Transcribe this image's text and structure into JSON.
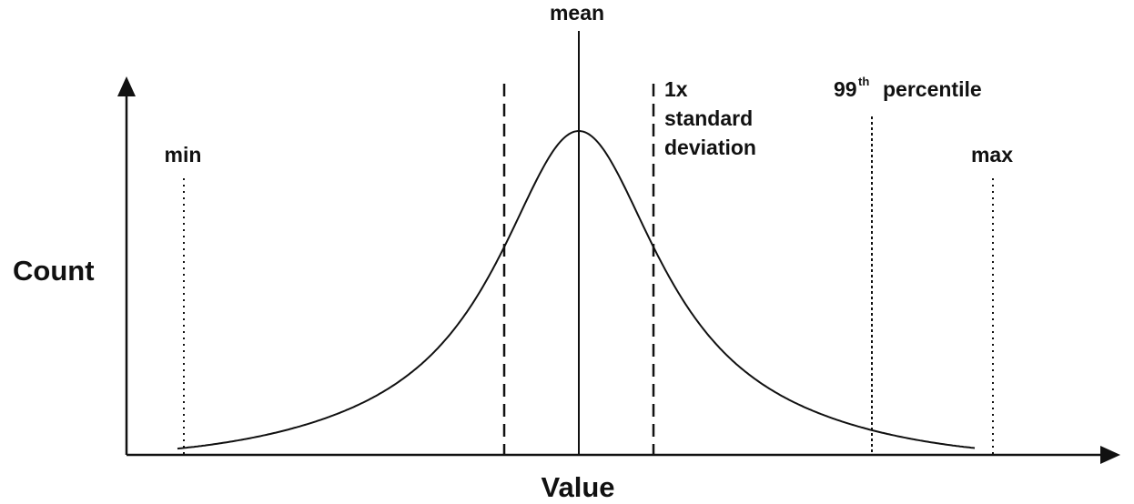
{
  "axes": {
    "y_label": "Count",
    "x_label": "Value"
  },
  "markers": {
    "min": "min",
    "mean": "mean",
    "std": {
      "line1": "1x",
      "line2": "standard",
      "line3": "deviation"
    },
    "p99": {
      "number": "99",
      "suffix": "th",
      "word": "percentile"
    },
    "max": "max"
  },
  "colors": {
    "ink": "#111111",
    "background": "#ffffff"
  }
}
